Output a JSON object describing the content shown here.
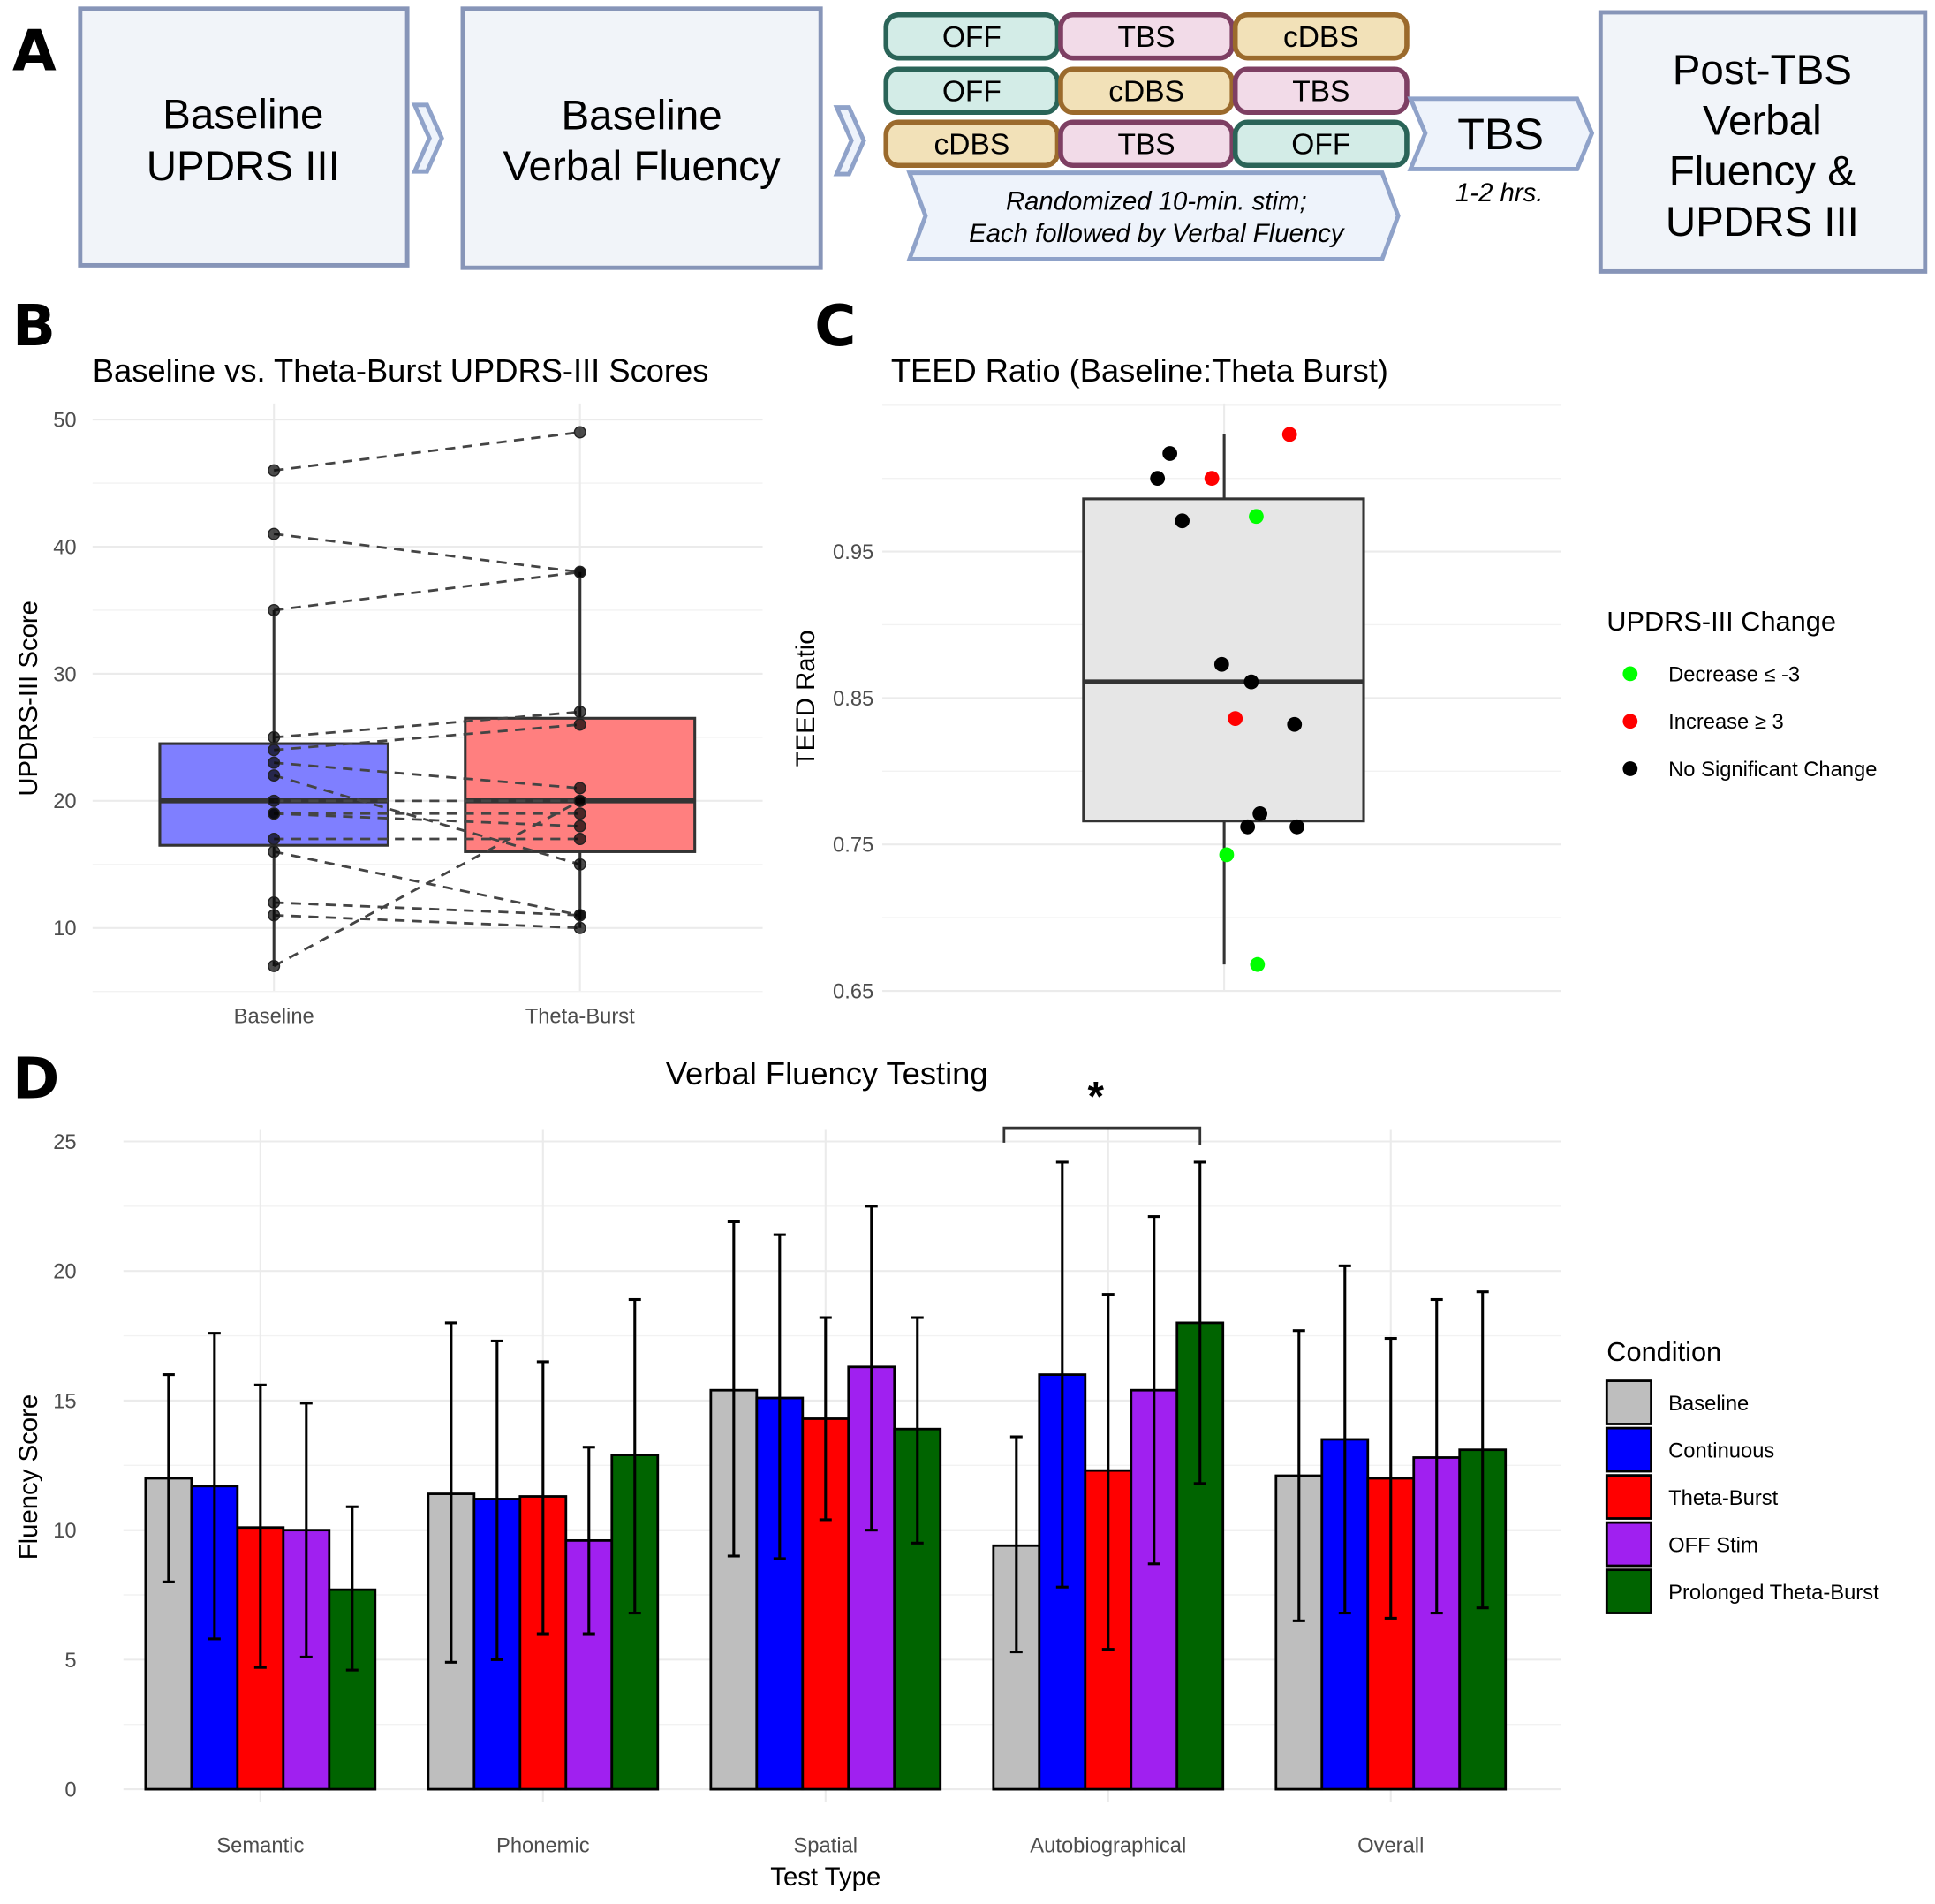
{
  "panel_letters": {
    "a": "A",
    "b": "B",
    "c": "C",
    "d": "D"
  },
  "panel_a": {
    "step1": [
      "Baseline",
      "UPDRS III"
    ],
    "step2": [
      "Baseline",
      "Verbal Fluency"
    ],
    "stim_rows": [
      [
        {
          "label": "OFF",
          "kind": "off"
        },
        {
          "label": "TBS",
          "kind": "tbs"
        },
        {
          "label": "cDBS",
          "kind": "cdbs"
        }
      ],
      [
        {
          "label": "OFF",
          "kind": "off"
        },
        {
          "label": "cDBS",
          "kind": "cdbs"
        },
        {
          "label": "TBS",
          "kind": "tbs"
        }
      ],
      [
        {
          "label": "cDBS",
          "kind": "cdbs"
        },
        {
          "label": "TBS",
          "kind": "tbs"
        },
        {
          "label": "OFF",
          "kind": "off"
        }
      ]
    ],
    "stim_colors": {
      "off": {
        "fill": "#d3ece7",
        "stroke": "#2a6458"
      },
      "tbs": {
        "fill": "#f2dbe8",
        "stroke": "#7e3f63"
      },
      "cdbs": {
        "fill": "#f2e1b8",
        "stroke": "#9b6a2c"
      }
    },
    "randomized_note": [
      "Randomized 10-min. stim;",
      "Each followed by Verbal Fluency"
    ],
    "tbs_step": "TBS",
    "tbs_duration": "1-2 hrs.",
    "final_step": [
      "Post-TBS",
      "Verbal",
      "Fluency &",
      "UPDRS III"
    ]
  },
  "chart_data": [
    {
      "id": "B",
      "type": "box-paired",
      "title": "Baseline vs. Theta-Burst UPDRS-III Scores",
      "xlabel": "",
      "ylabel": "UPDRS-III Score",
      "categories": [
        "Baseline",
        "Theta-Burst"
      ],
      "ylim": [
        5,
        51
      ],
      "yticks": [
        10,
        20,
        30,
        40,
        50
      ],
      "grid": true,
      "box_colors": [
        "#7f7fff",
        "#ff7f7f"
      ],
      "pairs": [
        {
          "baseline": 46,
          "theta_burst": 49
        },
        {
          "baseline": 41,
          "theta_burst": 38
        },
        {
          "baseline": 35,
          "theta_burst": 38
        },
        {
          "baseline": 25,
          "theta_burst": 27
        },
        {
          "baseline": 24,
          "theta_burst": 26
        },
        {
          "baseline": 23,
          "theta_burst": 21
        },
        {
          "baseline": 22,
          "theta_burst": 15
        },
        {
          "baseline": 20,
          "theta_burst": 20
        },
        {
          "baseline": 19,
          "theta_burst": 19
        },
        {
          "baseline": 19,
          "theta_burst": 18
        },
        {
          "baseline": 17,
          "theta_burst": 17
        },
        {
          "baseline": 16,
          "theta_burst": 11
        },
        {
          "baseline": 12,
          "theta_burst": 11
        },
        {
          "baseline": 11,
          "theta_burst": 10
        },
        {
          "baseline": 7,
          "theta_burst": 20
        }
      ],
      "boxes": [
        {
          "category": "Baseline",
          "q1": 16.5,
          "median": 20,
          "q3": 24.5,
          "whisker_low": 7,
          "whisker_high": 35
        },
        {
          "category": "Theta-Burst",
          "q1": 16,
          "median": 20,
          "q3": 26.5,
          "whisker_low": 10,
          "whisker_high": 38
        }
      ]
    },
    {
      "id": "C",
      "type": "box-scatter",
      "title": "TEED Ratio (Baseline:Theta Burst)",
      "xlabel": "",
      "ylabel": "TEED Ratio",
      "ylim": [
        0.65,
        1.04
      ],
      "yticks": [
        0.65,
        0.75,
        0.85,
        0.95
      ],
      "grid": true,
      "box": {
        "q1": 0.766,
        "median": 0.861,
        "q3": 0.986,
        "whisker_low": 0.668,
        "whisker_high": 1.03
      },
      "legend_title": "UPDRS-III Change",
      "legend_position": "right",
      "groups": [
        {
          "name": "Decrease ≤ -3",
          "color": "#00ff00"
        },
        {
          "name": "Increase ≥ 3",
          "color": "#ff0000"
        },
        {
          "name": "No Significant Change",
          "color": "#000000"
        }
      ],
      "points": [
        {
          "y": 1.03,
          "group": 1
        },
        {
          "y": 1.017,
          "group": 2
        },
        {
          "y": 1.0,
          "group": 2
        },
        {
          "y": 1.0,
          "group": 1
        },
        {
          "y": 0.974,
          "group": 0
        },
        {
          "y": 0.971,
          "group": 2
        },
        {
          "y": 0.873,
          "group": 2
        },
        {
          "y": 0.861,
          "group": 2
        },
        {
          "y": 0.836,
          "group": 1
        },
        {
          "y": 0.832,
          "group": 2
        },
        {
          "y": 0.771,
          "group": 2
        },
        {
          "y": 0.762,
          "group": 2
        },
        {
          "y": 0.762,
          "group": 2
        },
        {
          "y": 0.743,
          "group": 0
        },
        {
          "y": 0.668,
          "group": 0
        }
      ]
    },
    {
      "id": "D",
      "type": "bar",
      "title": "Verbal Fluency Testing",
      "xlabel": "Test Type",
      "ylabel": "Fluency Score",
      "categories": [
        "Semantic",
        "Phonemic",
        "Spatial",
        "Autobiographical",
        "Overall"
      ],
      "ylim": [
        0,
        25
      ],
      "yticks": [
        0,
        5,
        10,
        15,
        20,
        25
      ],
      "grid": true,
      "legend_title": "Condition",
      "legend_position": "right",
      "series": [
        {
          "name": "Baseline",
          "color": "#bebebe",
          "values": [
            12.0,
            11.4,
            15.4,
            9.4,
            12.1
          ],
          "err_low": [
            8.0,
            4.9,
            9.0,
            5.3,
            6.5
          ],
          "err_high": [
            16.0,
            18.0,
            21.9,
            13.6,
            17.7
          ]
        },
        {
          "name": "Continuous",
          "color": "#0000ff",
          "values": [
            11.7,
            11.2,
            15.1,
            16.0,
            13.5
          ],
          "err_low": [
            5.8,
            5.0,
            8.9,
            7.8,
            6.8
          ],
          "err_high": [
            17.6,
            17.3,
            21.4,
            24.2,
            20.2
          ]
        },
        {
          "name": "Theta-Burst",
          "color": "#ff0000",
          "values": [
            10.1,
            11.3,
            14.3,
            12.3,
            12.0
          ],
          "err_low": [
            4.7,
            6.0,
            10.4,
            5.4,
            6.6
          ],
          "err_high": [
            15.6,
            16.5,
            18.2,
            19.1,
            17.4
          ]
        },
        {
          "name": "OFF Stim",
          "color": "#a020f0",
          "values": [
            10.0,
            9.6,
            16.3,
            15.4,
            12.8
          ],
          "err_low": [
            5.1,
            6.0,
            10.0,
            8.7,
            6.8
          ],
          "err_high": [
            14.9,
            13.2,
            22.5,
            22.1,
            18.9
          ]
        },
        {
          "name": "Prolonged Theta-Burst",
          "color": "#006400",
          "values": [
            7.7,
            12.9,
            13.9,
            18.0,
            13.1
          ],
          "err_low": [
            4.6,
            6.8,
            9.5,
            11.8,
            7.0
          ],
          "err_high": [
            10.9,
            18.9,
            18.2,
            24.2,
            19.2
          ]
        }
      ],
      "annotations": [
        {
          "text": "*",
          "type": "significance-bracket",
          "category": "Autobiographical",
          "from_series": "Baseline",
          "to_series": "Prolonged Theta-Burst"
        }
      ]
    }
  ]
}
